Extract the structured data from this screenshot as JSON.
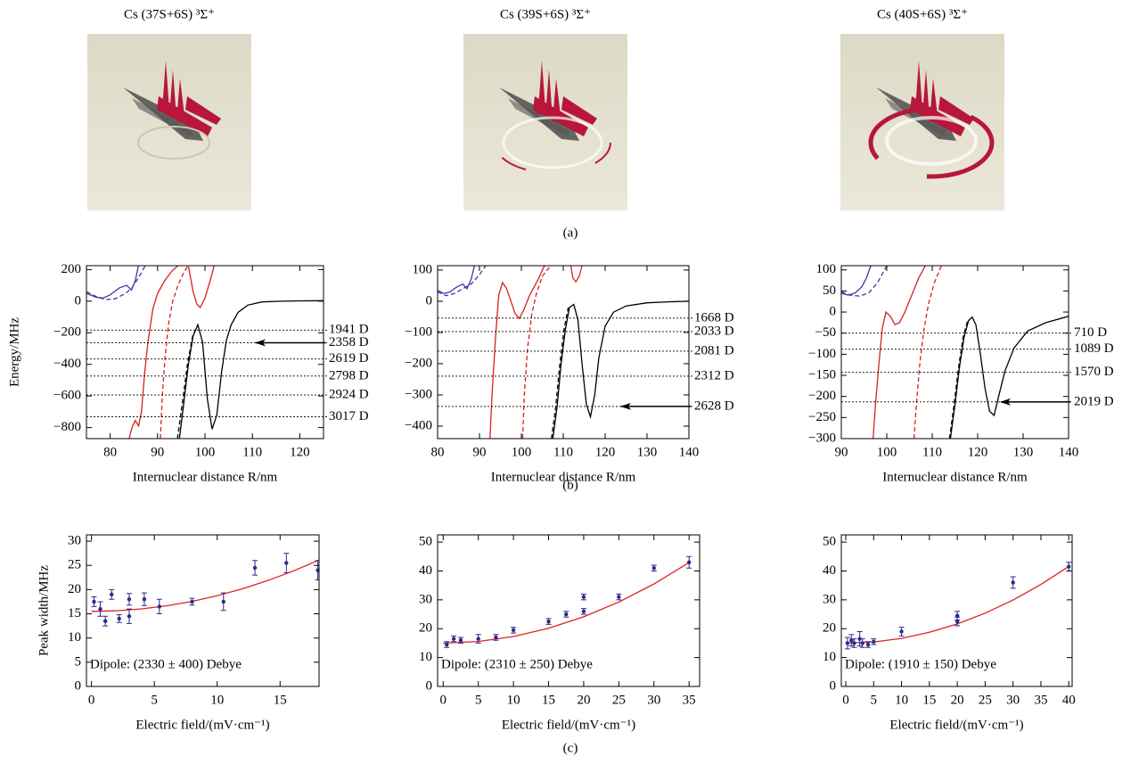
{
  "panel_a_titles": [
    "Cs (37S+6S) ³Σ⁺",
    "Cs (39S+6S) ³Σ⁺",
    "Cs (40S+6S) ³Σ⁺"
  ],
  "panel_labels": [
    "(a)",
    "(b)",
    "(c)"
  ],
  "chart_data": [
    {
      "type": "line",
      "xlim": [
        75,
        125
      ],
      "ylim": [
        -870,
        225
      ],
      "xticks": [
        80,
        90,
        100,
        110,
        120
      ],
      "yticks": [
        200,
        0,
        {
          "value": -200,
          "label": "−200"
        },
        {
          "value": -400,
          "label": "−400"
        },
        {
          "value": -600,
          "label": "−600"
        },
        {
          "value": -800,
          "label": "−800"
        }
      ],
      "xlabel": "Internuclear distance R/nm",
      "ylabel": "Energy/MHz",
      "series": [
        {
          "color": "#d62020",
          "dash": false,
          "x": [
            84,
            84.6,
            85.3,
            86,
            86.6,
            87.3,
            88,
            89,
            90,
            91.5,
            93,
            94.5
          ],
          "values": [
            -870,
            -800,
            -755,
            -790,
            -700,
            -450,
            -250,
            -50,
            50,
            130,
            190,
            230
          ]
        },
        {
          "color": "#d62020",
          "dash": false,
          "x": [
            96.5,
            97.5,
            98.3,
            99,
            100,
            101,
            102
          ],
          "values": [
            220,
            60,
            -20,
            -40,
            20,
            120,
            230
          ]
        },
        {
          "color": "#d62020",
          "dash": true,
          "x": [
            90.6,
            91,
            91.6,
            92.3,
            93.2,
            94.3,
            95.5,
            96.5
          ],
          "values": [
            -870,
            -600,
            -350,
            -150,
            0,
            100,
            180,
            230
          ]
        },
        {
          "color": "#3a3aa0",
          "dash": false,
          "x": [
            75,
            77,
            78.5,
            80,
            82,
            83.5,
            84.5,
            85.3,
            86
          ],
          "values": [
            50,
            25,
            20,
            40,
            85,
            100,
            70,
            130,
            230
          ]
        },
        {
          "color": "#3a3aa0",
          "dash": true,
          "x": [
            75,
            77,
            79,
            81,
            83,
            84.5,
            86,
            87.5
          ],
          "values": [
            60,
            30,
            10,
            15,
            45,
            80,
            150,
            230
          ]
        },
        {
          "color": "#000000",
          "dash": false,
          "x": [
            94.6,
            95.5,
            96.5,
            97.5,
            98.5,
            99.5,
            100.5,
            101.5,
            102.5,
            103.5,
            104.5,
            105.5,
            107,
            109,
            112,
            116,
            120,
            125
          ],
          "values": [
            -870,
            -650,
            -400,
            -220,
            -150,
            -260,
            -620,
            -810,
            -720,
            -450,
            -250,
            -150,
            -70,
            -25,
            -5,
            0,
            2,
            3
          ]
        },
        {
          "color": "#000000",
          "dash": true,
          "x": [
            94.2,
            95.2,
            96.3,
            97.4,
            98.5
          ],
          "values": [
            -870,
            -650,
            -400,
            -220,
            -150
          ]
        }
      ],
      "levels": {
        "values": [
          -183,
          -263,
          -366,
          -474,
          -594,
          -731
        ],
        "labels": [
          "1941 D",
          "2358 D",
          "2619 D",
          "2798 D",
          "2924 D",
          "3017 D"
        ]
      },
      "arrow_at": 1
    },
    {
      "type": "line",
      "xlim": [
        80,
        140
      ],
      "ylim": [
        -440,
        114
      ],
      "xticks": [
        80,
        90,
        100,
        110,
        120,
        130,
        140
      ],
      "yticks": [
        100,
        0,
        {
          "value": -100,
          "label": "−100"
        },
        {
          "value": -200,
          "label": "−200"
        },
        {
          "value": -300,
          "label": "−300"
        },
        {
          "value": -400,
          "label": "−400"
        }
      ],
      "xlabel": "Internuclear distance R/nm",
      "series": [
        {
          "color": "#d62020",
          "dash": false,
          "x": [
            92.5,
            93,
            93.8,
            94.6,
            95.5,
            96.5,
            97.5,
            98.5,
            99.5,
            100.5,
            102,
            104,
            105.5
          ],
          "values": [
            -440,
            -300,
            -120,
            20,
            60,
            40,
            0,
            -40,
            -55,
            -30,
            20,
            70,
            114
          ]
        },
        {
          "color": "#d62020",
          "dash": false,
          "x": [
            111.8,
            112.3,
            113,
            113.8,
            114.5
          ],
          "values": [
            114,
            75,
            62,
            80,
            114
          ]
        },
        {
          "color": "#d62020",
          "dash": true,
          "x": [
            100.3,
            100.7,
            101.5,
            102.5,
            103.5,
            105,
            107
          ],
          "values": [
            -440,
            -300,
            -150,
            -40,
            20,
            80,
            114
          ]
        },
        {
          "color": "#3a3aa0",
          "dash": false,
          "x": [
            80,
            81.5,
            83,
            84.5,
            86,
            87,
            88,
            88.8
          ],
          "values": [
            35,
            25,
            30,
            45,
            55,
            40,
            70,
            114
          ]
        },
        {
          "color": "#3a3aa0",
          "dash": true,
          "x": [
            80,
            82,
            84,
            86,
            88,
            90,
            91.5
          ],
          "values": [
            30,
            18,
            25,
            40,
            55,
            85,
            114
          ]
        },
        {
          "color": "#000000",
          "dash": false,
          "x": [
            107.5,
            108.5,
            109.5,
            110.5,
            111.5,
            112.5,
            113.5,
            114.5,
            115.5,
            116.5,
            117.5,
            118.5,
            120,
            122,
            125,
            130,
            135,
            140
          ],
          "values": [
            -440,
            -340,
            -200,
            -90,
            -20,
            -10,
            -60,
            -200,
            -330,
            -370,
            -300,
            -180,
            -80,
            -35,
            -15,
            -5,
            -2,
            0
          ]
        },
        {
          "color": "#000000",
          "dash": true,
          "x": [
            107.2,
            108.2,
            109.2,
            110.2,
            111.2
          ],
          "values": [
            -440,
            -340,
            -200,
            -90,
            -20
          ]
        }
      ],
      "levels": {
        "values": [
          -54,
          -97,
          -160,
          -240,
          -337
        ],
        "labels": [
          "1668 D",
          "2033 D",
          "2081 D",
          "2312 D",
          "2628 D"
        ]
      },
      "arrow_at": 4
    },
    {
      "type": "line",
      "xlim": [
        90,
        140
      ],
      "ylim": [
        -300,
        110
      ],
      "xticks": [
        90,
        100,
        110,
        120,
        130,
        140
      ],
      "yticks": [
        100,
        50,
        0,
        {
          "value": -50,
          "label": "−50"
        },
        {
          "value": -100,
          "label": "−100"
        },
        {
          "value": -150,
          "label": "−150"
        },
        {
          "value": -200,
          "label": "−200"
        },
        {
          "value": -250,
          "label": "−250"
        },
        {
          "value": -300,
          "label": "−300"
        }
      ],
      "xlabel": "Internuclear distance R/nm",
      "series": [
        {
          "color": "#d62020",
          "dash": false,
          "x": [
            97,
            97.5,
            98.3,
            99,
            99.8,
            100.8,
            101.8,
            102.8,
            104,
            105.5,
            107,
            108.5
          ],
          "values": [
            -300,
            -220,
            -120,
            -40,
            0,
            -10,
            -30,
            -25,
            0,
            40,
            80,
            110
          ]
        },
        {
          "color": "#d62020",
          "dash": true,
          "x": [
            106,
            106.5,
            107.3,
            108.2,
            109.2,
            110.5,
            112
          ],
          "values": [
            -300,
            -220,
            -120,
            -40,
            20,
            70,
            110
          ]
        },
        {
          "color": "#3a3aa0",
          "dash": false,
          "x": [
            90,
            91.5,
            93,
            94.5,
            95.5,
            96.5
          ],
          "values": [
            45,
            40,
            45,
            60,
            80,
            110
          ]
        },
        {
          "color": "#3a3aa0",
          "dash": true,
          "x": [
            90,
            92,
            94,
            96,
            98,
            100
          ],
          "values": [
            48,
            40,
            38,
            45,
            70,
            110
          ]
        },
        {
          "color": "#000000",
          "dash": false,
          "x": [
            114,
            115,
            116,
            117,
            118,
            118.8,
            119.6,
            120.6,
            121.6,
            122.6,
            123.6,
            124.6,
            126,
            128,
            131,
            135,
            140
          ],
          "values": [
            -300,
            -220,
            -130,
            -60,
            -20,
            -12,
            -30,
            -100,
            -180,
            -235,
            -245,
            -200,
            -140,
            -85,
            -45,
            -25,
            -10
          ]
        },
        {
          "color": "#000000",
          "dash": true,
          "x": [
            113.8,
            114.8,
            115.8,
            116.8,
            117.8
          ],
          "values": [
            -300,
            -220,
            -130,
            -60,
            -20
          ]
        }
      ],
      "levels": {
        "values": [
          -50,
          -88,
          -143,
          -213
        ],
        "labels": [
          "710 D",
          "1089 D",
          "1570 D",
          "2019 D"
        ]
      },
      "arrow_at": 3
    },
    {
      "type": "scatter",
      "xlim": [
        -0.4,
        18.1
      ],
      "ylim": [
        0,
        31.3
      ],
      "xticks": [
        0,
        5,
        10,
        15
      ],
      "yticks": [
        0,
        5,
        10,
        15,
        20,
        25,
        30
      ],
      "xlabel": "Electric field/(mV·cm⁻¹)",
      "ylabel": "Peak width/MHz",
      "annotation": "Dipole: (2330 ± 400) Debye",
      "color": "#2b2b8a",
      "x": [
        0.2,
        0.7,
        1.1,
        1.6,
        2.2,
        3,
        3,
        4.2,
        5.4,
        8,
        10.5,
        13,
        15.5,
        18
      ],
      "values": [
        17.5,
        16,
        13.5,
        19,
        14,
        18,
        14.5,
        18,
        16.5,
        17.5,
        17.5,
        24.5,
        25.5,
        24
      ],
      "errors": [
        1,
        1.5,
        1,
        1,
        0.8,
        1.2,
        1.5,
        1.3,
        1.5,
        0.7,
        1.8,
        1.5,
        2,
        2
      ],
      "fit": {
        "color": "#e02020",
        "x": [
          0,
          2,
          4,
          6,
          8,
          10,
          12,
          14,
          16,
          18
        ],
        "values": [
          15.5,
          15.63,
          16.02,
          16.67,
          17.57,
          18.74,
          20.17,
          21.85,
          23.79,
          26.0
        ]
      }
    },
    {
      "type": "scatter",
      "xlim": [
        -0.8,
        36.5
      ],
      "ylim": [
        0,
        52.5
      ],
      "xticks": [
        0,
        5,
        10,
        15,
        20,
        25,
        30,
        35
      ],
      "yticks": [
        0,
        10,
        20,
        30,
        40,
        50
      ],
      "xlabel": "Electric field/(mV·cm⁻¹)",
      "annotation": "Dipole: (2310 ± 250) Debye",
      "color": "#2b2b8a",
      "x": [
        0.5,
        1.5,
        2.5,
        5,
        7.5,
        10,
        15,
        17.5,
        20,
        20,
        25,
        30,
        35
      ],
      "values": [
        14.5,
        16.5,
        16,
        16.5,
        17,
        19.5,
        22.5,
        25,
        31,
        26,
        31,
        41,
        43
      ],
      "errors": [
        1,
        1,
        1,
        1.5,
        1,
        1,
        1,
        1,
        1,
        1,
        1,
        1,
        2
      ],
      "fit": {
        "color": "#e02020",
        "x": [
          0,
          5,
          10,
          15,
          20,
          25,
          30,
          35
        ],
        "values": [
          15,
          15.57,
          17.28,
          20.13,
          24.12,
          29.25,
          35.52,
          42.93
        ]
      }
    },
    {
      "type": "scatter",
      "xlim": [
        -0.8,
        40.6
      ],
      "ylim": [
        0,
        52.5
      ],
      "xticks": [
        0,
        5,
        10,
        15,
        20,
        25,
        30,
        35,
        40
      ],
      "yticks": [
        0,
        10,
        20,
        30,
        40,
        50
      ],
      "xlabel": "Electric field/(mV·cm⁻¹)",
      "annotation": "Dipole: (1910 ± 150) Debye",
      "color": "#2b2b8a",
      "x": [
        0.3,
        1,
        1.5,
        2.5,
        3,
        4,
        5,
        10,
        20,
        20,
        30,
        40
      ],
      "values": [
        15,
        16,
        15,
        16.5,
        15,
        14.5,
        15.5,
        19,
        22.5,
        24.5,
        36,
        41.5
      ],
      "errors": [
        2,
        2,
        1.5,
        2.5,
        1.5,
        1,
        1,
        1.5,
        1.5,
        1.5,
        2,
        1.5
      ],
      "fit": {
        "color": "#e02020",
        "x": [
          0,
          5,
          10,
          15,
          20,
          25,
          30,
          35,
          40
        ],
        "values": [
          15,
          15.42,
          16.66,
          18.74,
          21.64,
          25.38,
          29.94,
          35.34,
          41.56
        ]
      }
    }
  ]
}
